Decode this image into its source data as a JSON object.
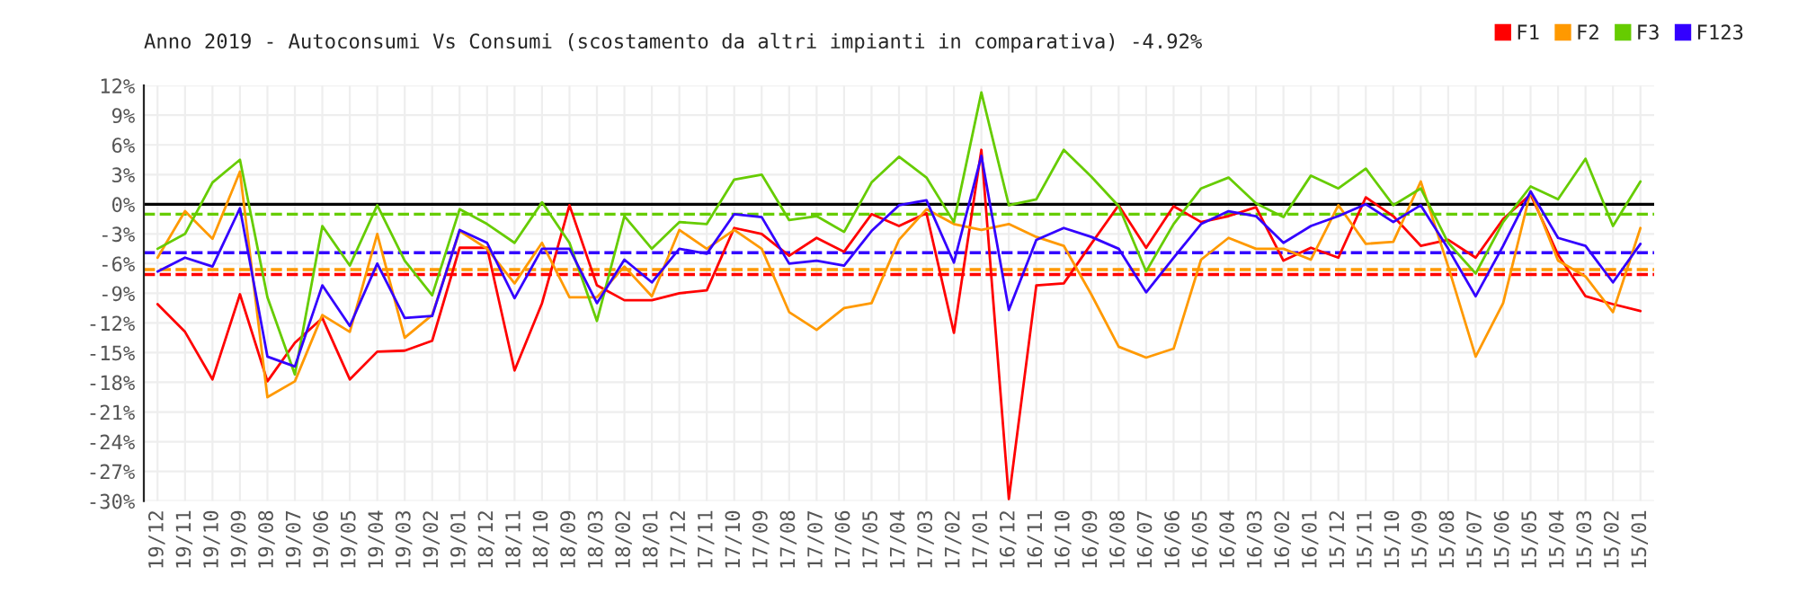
{
  "chart_data": {
    "type": "line",
    "title": "Anno 2019 - Autoconsumi Vs Consumi (scostamento da altri impianti in comparativa) -4.92%",
    "categories": [
      "19/12",
      "19/11",
      "19/10",
      "19/09",
      "19/08",
      "19/07",
      "19/06",
      "19/05",
      "19/04",
      "19/03",
      "19/02",
      "19/01",
      "18/12",
      "18/11",
      "18/10",
      "18/09",
      "18/03",
      "18/02",
      "18/01",
      "17/12",
      "17/11",
      "17/10",
      "17/09",
      "17/08",
      "17/07",
      "17/06",
      "17/05",
      "17/04",
      "17/03",
      "17/02",
      "17/01",
      "16/12",
      "16/11",
      "16/10",
      "16/09",
      "16/08",
      "16/07",
      "16/06",
      "16/05",
      "16/04",
      "16/03",
      "16/02",
      "16/01",
      "15/12",
      "15/11",
      "15/10",
      "15/09",
      "15/08",
      "15/07",
      "15/06",
      "15/05",
      "15/04",
      "15/03",
      "15/02",
      "15/01"
    ],
    "series": [
      {
        "name": "F1",
        "color": "#ff0000",
        "values": [
          -10.1,
          -12.9,
          -17.7,
          -9.1,
          -17.9,
          -14.0,
          -11.5,
          -17.7,
          -14.9,
          -14.8,
          -13.8,
          -4.4,
          -4.4,
          -16.8,
          -10.0,
          -0.1,
          -8.2,
          -9.7,
          -9.7,
          -9.0,
          -8.7,
          -2.4,
          -3.0,
          -5.2,
          -3.4,
          -4.8,
          -1.0,
          -2.2,
          -0.9,
          -13.0,
          5.5,
          -29.8,
          -8.2,
          -8.0,
          -4.0,
          -0.1,
          -4.4,
          -0.2,
          -1.8,
          -1.2,
          -0.3,
          -5.7,
          -4.4,
          -5.4,
          0.7,
          -1.2,
          -4.2,
          -3.6,
          -5.4,
          -1.5,
          1.0,
          -5.1,
          -9.3,
          -10.1,
          -10.8
        ]
      },
      {
        "name": "F2",
        "color": "#ff9900",
        "values": [
          -5.4,
          -0.7,
          -3.5,
          3.3,
          -19.5,
          -17.9,
          -11.2,
          -12.9,
          -3.0,
          -13.5,
          -11.2,
          -2.7,
          -4.5,
          -8.0,
          -3.9,
          -9.4,
          -9.4,
          -6.3,
          -9.3,
          -2.6,
          -4.5,
          -2.6,
          -4.5,
          -10.9,
          -12.7,
          -10.5,
          -10.0,
          -3.6,
          -0.5,
          -2.0,
          -2.6,
          -2.0,
          -3.3,
          -4.2,
          -9.1,
          -14.4,
          -15.5,
          -14.6,
          -5.6,
          -3.4,
          -4.5,
          -4.5,
          -5.6,
          -0.1,
          -4.0,
          -3.8,
          2.3,
          -6.3,
          -15.4,
          -10.0,
          1.3,
          -5.7,
          -7.3,
          -10.9,
          -2.4
        ]
      },
      {
        "name": "F3",
        "color": "#66cc00",
        "values": [
          -4.5,
          -3.0,
          2.2,
          4.5,
          -9.4,
          -17.2,
          -2.2,
          -6.2,
          -0.1,
          -5.7,
          -9.2,
          -0.5,
          -2.0,
          -3.9,
          0.2,
          -3.9,
          -11.8,
          -1.2,
          -4.5,
          -1.8,
          -2.0,
          2.5,
          3.0,
          -1.6,
          -1.2,
          -2.8,
          2.2,
          4.8,
          2.7,
          -1.8,
          11.3,
          -0.1,
          0.5,
          5.5,
          2.8,
          -0.2,
          -6.8,
          -2.0,
          1.6,
          2.7,
          0.1,
          -1.3,
          2.9,
          1.6,
          3.6,
          -0.1,
          1.6,
          -3.9,
          -7.0,
          -1.8,
          1.8,
          0.5,
          4.6,
          -2.2,
          2.3
        ]
      },
      {
        "name": "F123",
        "color": "#3300ff",
        "values": [
          -6.8,
          -5.4,
          -6.3,
          -0.4,
          -15.4,
          -16.4,
          -8.2,
          -12.3,
          -6.0,
          -11.5,
          -11.3,
          -2.6,
          -3.9,
          -9.5,
          -4.5,
          -4.5,
          -10.0,
          -5.6,
          -7.9,
          -4.5,
          -5.0,
          -1.0,
          -1.3,
          -6.0,
          -5.7,
          -6.2,
          -2.7,
          -0.1,
          0.4,
          -5.9,
          4.9,
          -10.7,
          -3.6,
          -2.4,
          -3.3,
          -4.5,
          -8.9,
          -5.4,
          -2.0,
          -0.7,
          -1.2,
          -3.9,
          -2.2,
          -1.2,
          0.0,
          -1.8,
          -0.1,
          -4.5,
          -9.3,
          -4.2,
          1.3,
          -3.4,
          -4.2,
          -7.9,
          -4.0
        ]
      }
    ],
    "ref_lines": [
      {
        "axis": "y",
        "value": 0,
        "color": "#000000",
        "line_style": "solid"
      },
      {
        "axis": "y",
        "value": -1.0,
        "color": "#66cc00",
        "line_style": "dashed"
      },
      {
        "axis": "y",
        "value": -4.9,
        "color": "#3300ff",
        "line_style": "dashed"
      },
      {
        "axis": "y",
        "value": -6.6,
        "color": "#ff9900",
        "line_style": "dashed"
      },
      {
        "axis": "y",
        "value": -7.1,
        "color": "#ff0000",
        "line_style": "dashed"
      }
    ],
    "ylim": [
      -30,
      12
    ],
    "yticks": [
      {
        "value": -30,
        "label": "-30%"
      },
      {
        "value": -27,
        "label": "-27%"
      },
      {
        "value": -24,
        "label": "-24%"
      },
      {
        "value": -21,
        "label": "-21%"
      },
      {
        "value": -18,
        "label": "-18%"
      },
      {
        "value": -15,
        "label": "-15%"
      },
      {
        "value": -12,
        "label": "-12%"
      },
      {
        "value": -9,
        "label": "-9%"
      },
      {
        "value": -6,
        "label": "-6%"
      },
      {
        "value": -3,
        "label": "-3%"
      },
      {
        "value": 0,
        "label": "0%"
      },
      {
        "value": 3,
        "label": "3%"
      },
      {
        "value": 6,
        "label": "6%"
      },
      {
        "value": 9,
        "label": "9%"
      },
      {
        "value": 12,
        "label": "12%"
      }
    ],
    "grid": true,
    "legend": "top right",
    "marker": "none",
    "line_style": "solid"
  }
}
